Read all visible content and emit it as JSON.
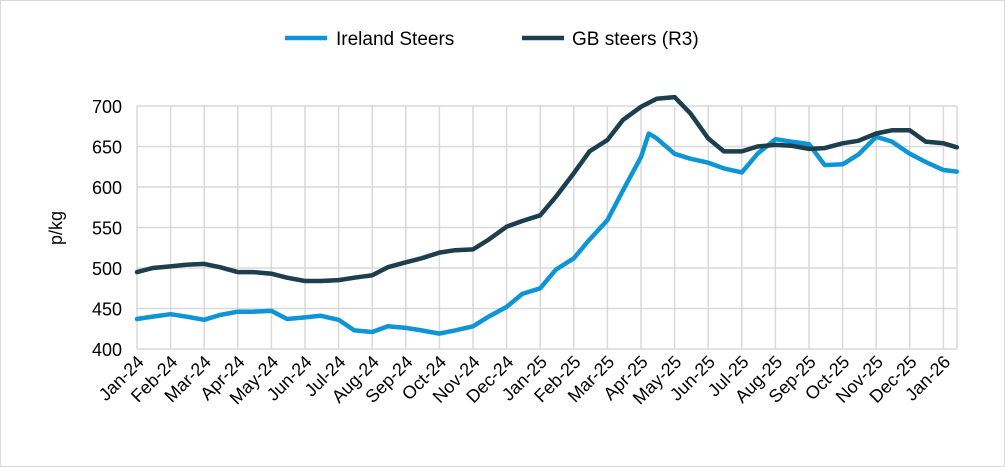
{
  "chart_data": {
    "type": "line",
    "title": "",
    "xlabel": "",
    "ylabel": "p/kg",
    "ylim": [
      400,
      700
    ],
    "yticks": [
      "400",
      "450",
      "500",
      "550",
      "600",
      "650",
      "700"
    ],
    "xticks": [
      "Jan-24",
      "Feb-24",
      "Mar-24",
      "Apr-24",
      "May-24",
      "Jun-24",
      "Jul-24",
      "Aug-24",
      "Sep-24",
      "Oct-24",
      "Nov-24",
      "Dec-24",
      "Jan-25",
      "Feb-25",
      "Mar-25",
      "Apr-25",
      "May-25",
      "Jun-25",
      "Jul-25",
      "Aug-25",
      "Sep-25",
      "Oct-25",
      "Nov-25",
      "Dec-25",
      "Jan-26"
    ],
    "grid": true,
    "legend_position": "top",
    "series": [
      {
        "name": "Ireland Steers",
        "color": "#0e95d6",
        "x": [
          "2024-01-01",
          "2024-01-15",
          "2024-02-01",
          "2024-02-15",
          "2024-03-01",
          "2024-03-15",
          "2024-04-01",
          "2024-04-15",
          "2024-05-01",
          "2024-05-15",
          "2024-06-01",
          "2024-06-15",
          "2024-07-01",
          "2024-07-15",
          "2024-08-01",
          "2024-08-15",
          "2024-09-01",
          "2024-09-15",
          "2024-10-01",
          "2024-10-15",
          "2024-11-01",
          "2024-11-15",
          "2024-12-01",
          "2024-12-15",
          "2025-01-01",
          "2025-01-15",
          "2025-02-01",
          "2025-02-15",
          "2025-03-01",
          "2025-03-15",
          "2025-04-01",
          "2025-04-08",
          "2025-04-15",
          "2025-05-01",
          "2025-05-15",
          "2025-06-01",
          "2025-06-15",
          "2025-07-01",
          "2025-07-15",
          "2025-08-01",
          "2025-08-15",
          "2025-09-01",
          "2025-09-15",
          "2025-10-01",
          "2025-10-15",
          "2025-11-01",
          "2025-11-15",
          "2025-12-01",
          "2025-12-15",
          "2026-01-01",
          "2026-01-13"
        ],
        "y": [
          437,
          440,
          443,
          440,
          436,
          442,
          446,
          446,
          447,
          437,
          439,
          441,
          436,
          423,
          421,
          428,
          426,
          423,
          419,
          423,
          428,
          440,
          452,
          468,
          475,
          498,
          512,
          535,
          559,
          596,
          637,
          666,
          660,
          641,
          635,
          630,
          623,
          618,
          641,
          659,
          656,
          653,
          627,
          628,
          640,
          662,
          656,
          641,
          631,
          621,
          619
        ]
      },
      {
        "name": "GB steers (R3)",
        "color": "#1c3e4d",
        "x": [
          "2024-01-01",
          "2024-01-15",
          "2024-02-01",
          "2024-02-15",
          "2024-03-01",
          "2024-03-15",
          "2024-04-01",
          "2024-04-15",
          "2024-05-01",
          "2024-05-15",
          "2024-06-01",
          "2024-06-15",
          "2024-07-01",
          "2024-07-15",
          "2024-08-01",
          "2024-08-15",
          "2024-09-01",
          "2024-09-15",
          "2024-10-01",
          "2024-10-15",
          "2024-11-01",
          "2024-11-15",
          "2024-12-01",
          "2024-12-15",
          "2025-01-01",
          "2025-01-15",
          "2025-02-01",
          "2025-02-15",
          "2025-03-01",
          "2025-03-15",
          "2025-04-01",
          "2025-04-15",
          "2025-05-01",
          "2025-05-15",
          "2025-06-01",
          "2025-06-15",
          "2025-07-01",
          "2025-07-15",
          "2025-08-01",
          "2025-08-15",
          "2025-09-01",
          "2025-09-15",
          "2025-10-01",
          "2025-10-15",
          "2025-11-01",
          "2025-11-15",
          "2025-12-01",
          "2025-12-15",
          "2026-01-01",
          "2026-01-13"
        ],
        "y": [
          495,
          500,
          502,
          504,
          505,
          501,
          495,
          495,
          493,
          488,
          484,
          484,
          485,
          488,
          491,
          501,
          507,
          512,
          519,
          522,
          523,
          535,
          551,
          558,
          565,
          588,
          617,
          644,
          658,
          683,
          699,
          709,
          711,
          691,
          660,
          644,
          644,
          650,
          652,
          651,
          647,
          648,
          654,
          657,
          666,
          670,
          670,
          656,
          654,
          649
        ]
      }
    ]
  }
}
